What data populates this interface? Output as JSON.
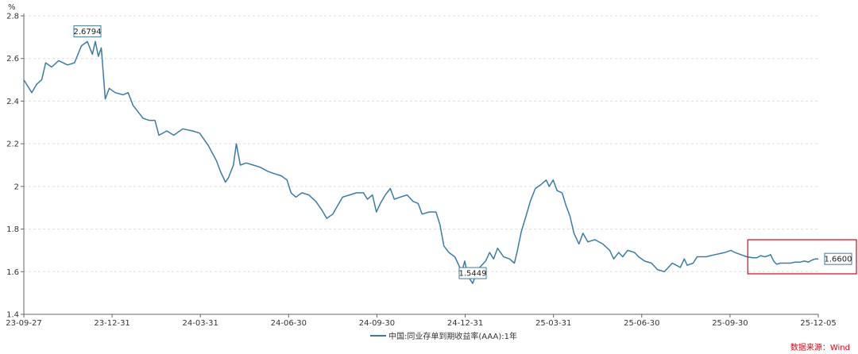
{
  "chart_data": {
    "type": "line",
    "unit_label": "%",
    "y_ticks": [
      "1.4",
      "1.6",
      "1.8",
      "2",
      "2.2",
      "2.4",
      "2.6",
      "2.8"
    ],
    "ylim": [
      1.4,
      2.8
    ],
    "x_ticks": [
      "23-09-27",
      "23-12-31",
      "24-03-31",
      "24-06-30",
      "24-09-30",
      "24-12-31",
      "25-03-31",
      "25-06-30",
      "25-09-30",
      "25-12-05"
    ],
    "grid": "horizontal dashed",
    "series": [
      {
        "name": "中国:同业存单到期收益率(AAA):1年",
        "color": "#3a7ca5",
        "points": [
          [
            "2023-09-27",
            2.5
          ],
          [
            "2023-10-05",
            2.44
          ],
          [
            "2023-10-10",
            2.48
          ],
          [
            "2023-10-15",
            2.5
          ],
          [
            "2023-10-19",
            2.58
          ],
          [
            "2023-10-25",
            2.56
          ],
          [
            "2023-11-01",
            2.59
          ],
          [
            "2023-11-10",
            2.57
          ],
          [
            "2023-11-17",
            2.58
          ],
          [
            "2023-11-24",
            2.66
          ],
          [
            "2023-11-30",
            2.6794
          ],
          [
            "2023-12-05",
            2.62
          ],
          [
            "2023-12-08",
            2.68
          ],
          [
            "2023-12-11",
            2.61
          ],
          [
            "2023-12-14",
            2.65
          ],
          [
            "2023-12-18",
            2.41
          ],
          [
            "2023-12-22",
            2.46
          ],
          [
            "2023-12-28",
            2.44
          ],
          [
            "2024-01-05",
            2.43
          ],
          [
            "2024-01-10",
            2.44
          ],
          [
            "2024-01-15",
            2.38
          ],
          [
            "2024-01-20",
            2.35
          ],
          [
            "2024-01-25",
            2.32
          ],
          [
            "2024-01-31",
            2.31
          ],
          [
            "2024-02-06",
            2.31
          ],
          [
            "2024-02-10",
            2.24
          ],
          [
            "2024-02-18",
            2.26
          ],
          [
            "2024-02-25",
            2.24
          ],
          [
            "2024-03-05",
            2.27
          ],
          [
            "2024-03-15",
            2.26
          ],
          [
            "2024-03-22",
            2.25
          ],
          [
            "2024-03-31",
            2.19
          ],
          [
            "2024-04-08",
            2.12
          ],
          [
            "2024-04-12",
            2.07
          ],
          [
            "2024-04-17",
            2.02
          ],
          [
            "2024-04-20",
            2.04
          ],
          [
            "2024-04-25",
            2.1
          ],
          [
            "2024-04-28",
            2.2
          ],
          [
            "2024-05-02",
            2.1
          ],
          [
            "2024-05-08",
            2.11
          ],
          [
            "2024-05-15",
            2.1
          ],
          [
            "2024-05-22",
            2.09
          ],
          [
            "2024-05-30",
            2.07
          ],
          [
            "2024-06-05",
            2.06
          ],
          [
            "2024-06-12",
            2.05
          ],
          [
            "2024-06-18",
            2.03
          ],
          [
            "2024-06-22",
            1.97
          ],
          [
            "2024-06-27",
            1.95
          ],
          [
            "2024-07-03",
            1.97
          ],
          [
            "2024-07-10",
            1.96
          ],
          [
            "2024-07-17",
            1.93
          ],
          [
            "2024-07-23",
            1.89
          ],
          [
            "2024-07-28",
            1.85
          ],
          [
            "2024-08-03",
            1.87
          ],
          [
            "2024-08-08",
            1.91
          ],
          [
            "2024-08-13",
            1.95
          ],
          [
            "2024-08-20",
            1.96
          ],
          [
            "2024-08-27",
            1.97
          ],
          [
            "2024-09-03",
            1.97
          ],
          [
            "2024-09-07",
            1.94
          ],
          [
            "2024-09-12",
            1.96
          ],
          [
            "2024-09-16",
            1.88
          ],
          [
            "2024-09-20",
            1.92
          ],
          [
            "2024-09-25",
            1.96
          ],
          [
            "2024-09-30",
            1.99
          ],
          [
            "2024-10-04",
            1.94
          ],
          [
            "2024-10-10",
            1.95
          ],
          [
            "2024-10-17",
            1.96
          ],
          [
            "2024-10-23",
            1.93
          ],
          [
            "2024-10-28",
            1.92
          ],
          [
            "2024-11-01",
            1.87
          ],
          [
            "2024-11-08",
            1.88
          ],
          [
            "2024-11-15",
            1.88
          ],
          [
            "2024-11-19",
            1.82
          ],
          [
            "2024-11-23",
            1.72
          ],
          [
            "2024-11-28",
            1.69
          ],
          [
            "2024-12-04",
            1.67
          ],
          [
            "2024-12-08",
            1.63
          ],
          [
            "2024-12-11",
            1.6
          ],
          [
            "2024-12-14",
            1.65
          ],
          [
            "2024-12-17",
            1.58
          ],
          [
            "2024-12-22",
            1.5449
          ],
          [
            "2024-12-27",
            1.61
          ],
          [
            "2024-12-31",
            1.63
          ],
          [
            "2025-01-04",
            1.65
          ],
          [
            "2025-01-08",
            1.69
          ],
          [
            "2025-01-12",
            1.66
          ],
          [
            "2025-01-16",
            1.71
          ],
          [
            "2025-01-22",
            1.67
          ],
          [
            "2025-01-28",
            1.66
          ],
          [
            "2025-02-02",
            1.64
          ],
          [
            "2025-02-05",
            1.7
          ],
          [
            "2025-02-09",
            1.79
          ],
          [
            "2025-02-13",
            1.85
          ],
          [
            "2025-02-18",
            1.93
          ],
          [
            "2025-02-23",
            1.99
          ],
          [
            "2025-03-01",
            2.01
          ],
          [
            "2025-03-06",
            2.03
          ],
          [
            "2025-03-09",
            2.0
          ],
          [
            "2025-03-13",
            2.03
          ],
          [
            "2025-03-17",
            1.98
          ],
          [
            "2025-03-22",
            1.97
          ],
          [
            "2025-03-26",
            1.91
          ],
          [
            "2025-03-30",
            1.86
          ],
          [
            "2025-04-03",
            1.78
          ],
          [
            "2025-04-08",
            1.73
          ],
          [
            "2025-04-12",
            1.78
          ],
          [
            "2025-04-17",
            1.74
          ],
          [
            "2025-04-24",
            1.75
          ],
          [
            "2025-05-02",
            1.73
          ],
          [
            "2025-05-09",
            1.7
          ],
          [
            "2025-05-13",
            1.66
          ],
          [
            "2025-05-18",
            1.69
          ],
          [
            "2025-05-22",
            1.67
          ],
          [
            "2025-05-27",
            1.7
          ],
          [
            "2025-06-03",
            1.69
          ],
          [
            "2025-06-07",
            1.67
          ],
          [
            "2025-06-13",
            1.65
          ],
          [
            "2025-06-20",
            1.64
          ],
          [
            "2025-06-26",
            1.61
          ],
          [
            "2025-07-03",
            1.6
          ],
          [
            "2025-07-07",
            1.62
          ],
          [
            "2025-07-11",
            1.64
          ],
          [
            "2025-07-15",
            1.63
          ],
          [
            "2025-07-19",
            1.62
          ],
          [
            "2025-07-23",
            1.66
          ],
          [
            "2025-07-26",
            1.63
          ],
          [
            "2025-08-01",
            1.64
          ],
          [
            "2025-08-05",
            1.67
          ],
          [
            "2025-08-14",
            1.67
          ],
          [
            "2025-08-23",
            1.68
          ],
          [
            "2025-09-02",
            1.69
          ],
          [
            "2025-09-08",
            1.7
          ],
          [
            "2025-09-12",
            1.69
          ],
          [
            "2025-09-18",
            1.68
          ],
          [
            "2025-09-24",
            1.67
          ],
          [
            "2025-09-30",
            1.665
          ],
          [
            "2025-10-04",
            1.665
          ],
          [
            "2025-10-08",
            1.675
          ],
          [
            "2025-10-12",
            1.67
          ],
          [
            "2025-10-16",
            1.675
          ],
          [
            "2025-10-18",
            1.68
          ],
          [
            "2025-10-21",
            1.65
          ],
          [
            "2025-10-24",
            1.635
          ],
          [
            "2025-10-28",
            1.64
          ],
          [
            "2025-11-02",
            1.64
          ],
          [
            "2025-11-07",
            1.64
          ],
          [
            "2025-11-12",
            1.645
          ],
          [
            "2025-11-17",
            1.645
          ],
          [
            "2025-11-21",
            1.65
          ],
          [
            "2025-11-25",
            1.645
          ],
          [
            "2025-11-29",
            1.655
          ],
          [
            "2025-12-02",
            1.66
          ],
          [
            "2025-12-05",
            1.66
          ]
        ]
      }
    ],
    "annotations": [
      {
        "date": "2023-11-30",
        "value": 2.6794,
        "label": "2.6794",
        "position": "above"
      },
      {
        "date": "2024-12-22",
        "value": 1.5449,
        "label": "1.5449",
        "position": "above"
      },
      {
        "date": "2025-12-05",
        "value": 1.66,
        "label": "1.6600",
        "position": "right"
      }
    ],
    "highlight_box": {
      "start_date": "2025-09-25",
      "end_date": "2025-12-05",
      "y_range": [
        1.59,
        1.75
      ],
      "color": "#e60012"
    },
    "source": "数据来源：Wind"
  }
}
